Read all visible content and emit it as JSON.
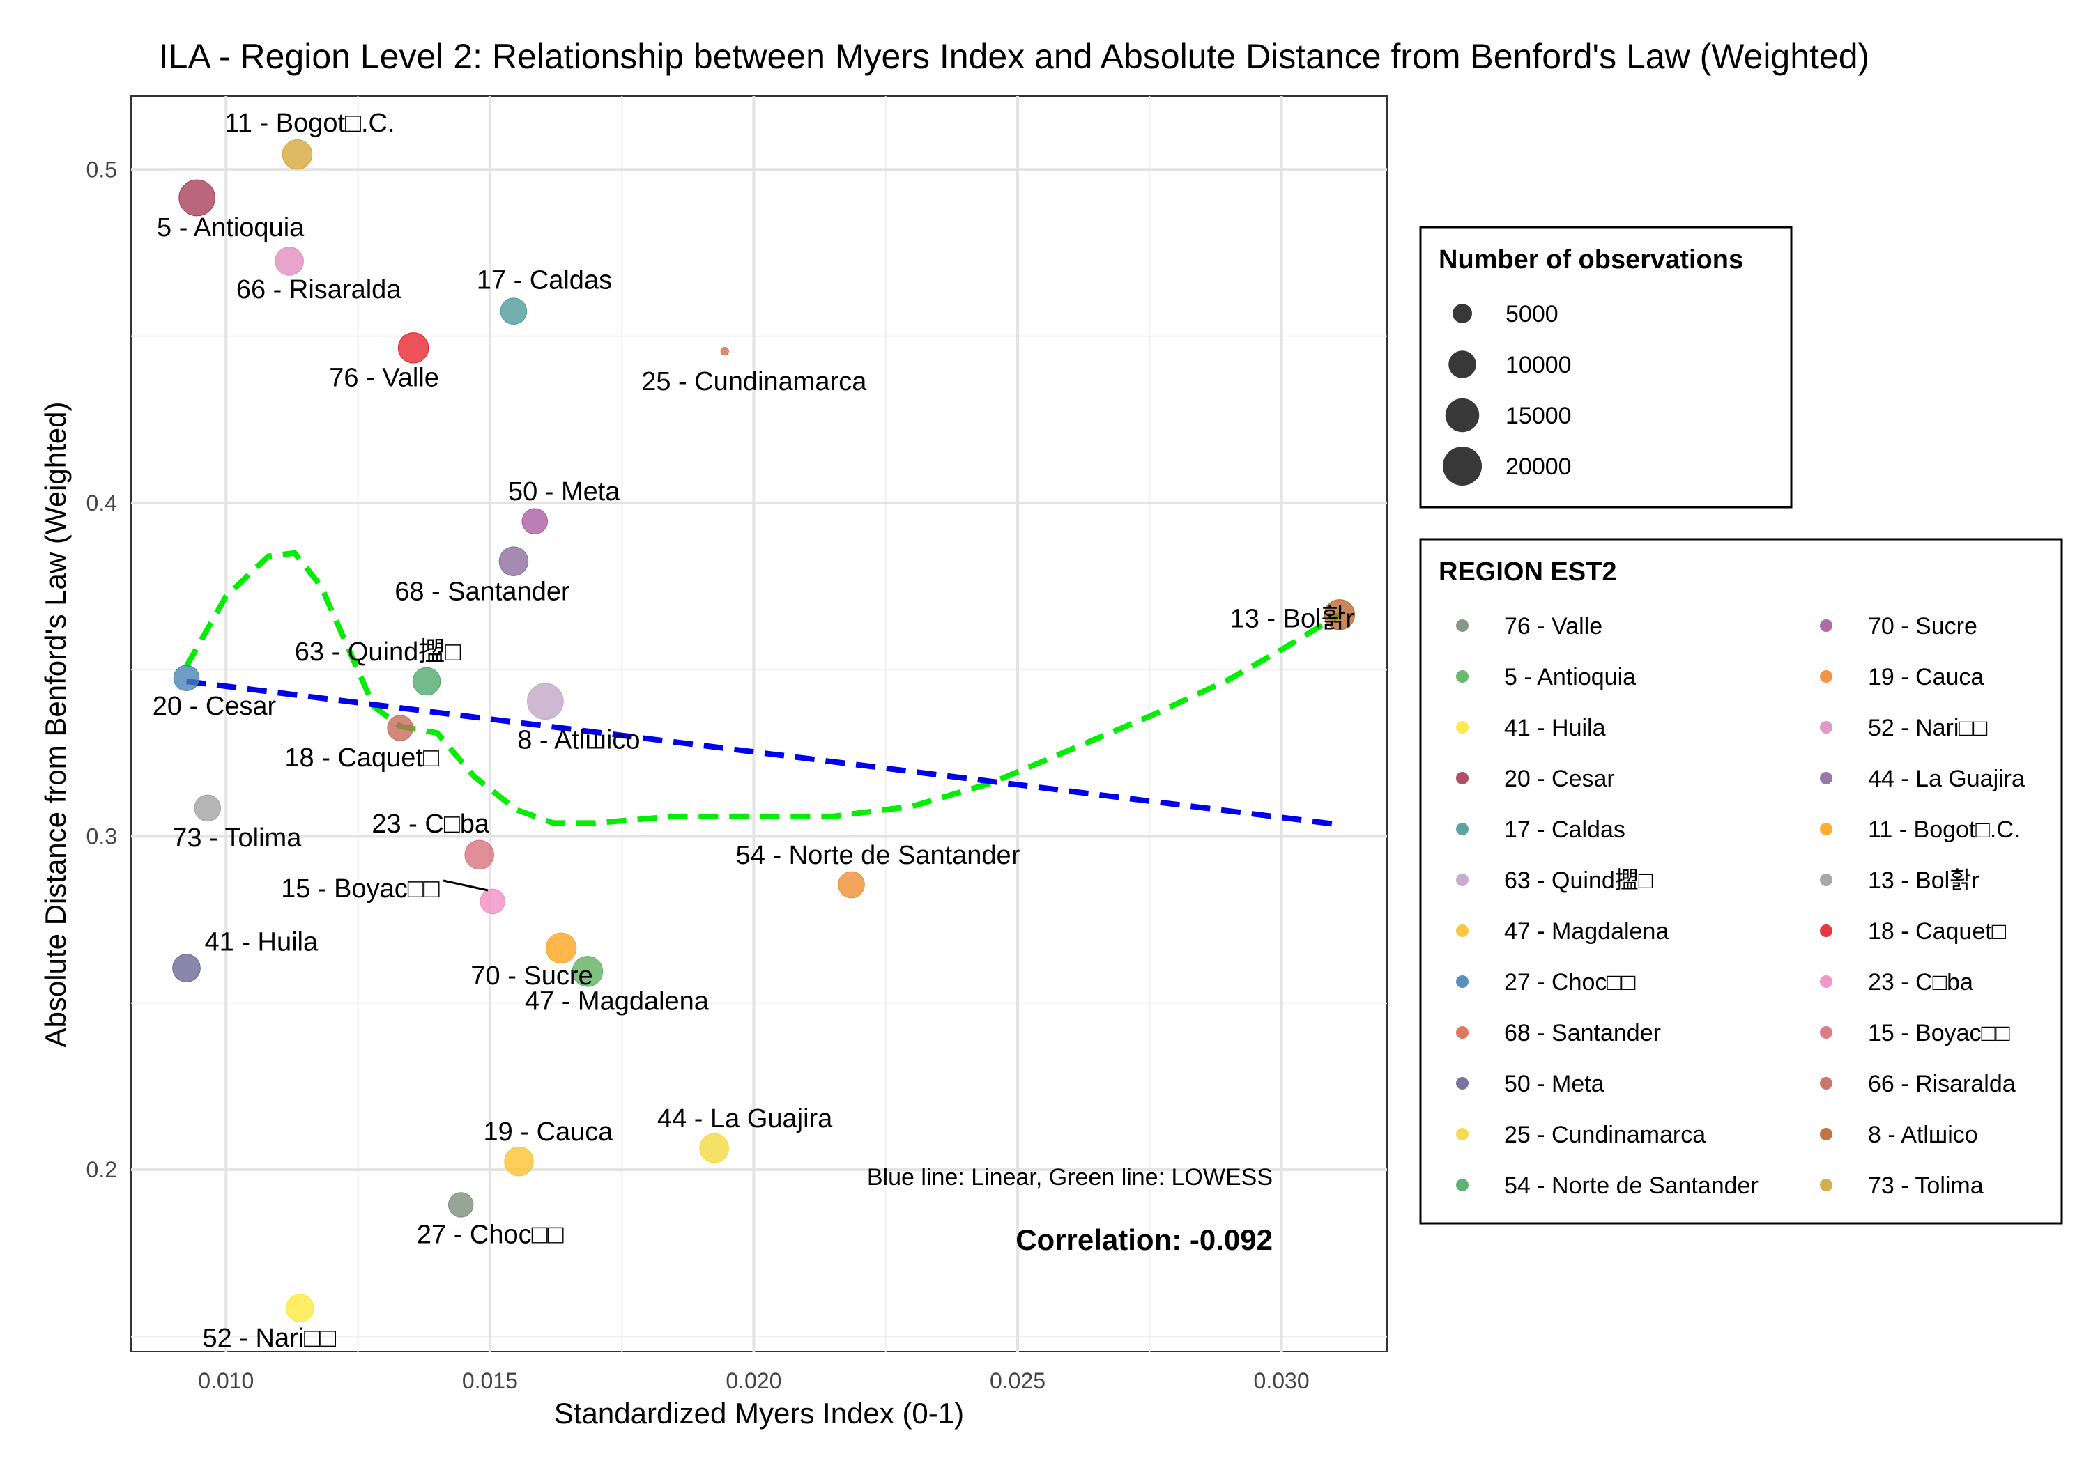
{
  "chart_data": {
    "type": "scatter",
    "title": "ILA - Region Level 2: Relationship between Myers Index and Absolute Distance from Benford's Law (Weighted)",
    "xlabel": "Standardized Myers Index (0-1)",
    "ylabel": "Absolute Distance from Benford's Law (Weighted)",
    "xlim": [
      0.0082,
      0.032
    ],
    "ylim": [
      0.1455,
      0.522
    ],
    "x_ticks": [
      0.01,
      0.015,
      0.02,
      0.025,
      0.03
    ],
    "x_tick_labels": [
      "0.010",
      "0.015",
      "0.020",
      "0.025",
      "0.030"
    ],
    "y_ticks": [
      0.2,
      0.3,
      0.4,
      0.5
    ],
    "y_tick_labels": [
      "0.2",
      "0.3",
      "0.4",
      "0.5"
    ],
    "grid": true,
    "points": [
      {
        "label": "11 - Bogot□.C.",
        "x": 0.01135,
        "y": 0.5045,
        "n": 11500,
        "color": "#d4a537"
      },
      {
        "label": "5 - Antioquia",
        "x": 0.00945,
        "y": 0.4915,
        "n": 17000,
        "color": "#a83c56"
      },
      {
        "label": "66 - Risaralda",
        "x": 0.0112,
        "y": 0.4725,
        "n": 10500,
        "color": "#e08cc0"
      },
      {
        "label": "17 - Caldas",
        "x": 0.01545,
        "y": 0.4575,
        "n": 9000,
        "color": "#4a9a9a"
      },
      {
        "label": "76 - Valle",
        "x": 0.01355,
        "y": 0.4465,
        "n": 12000,
        "color": "#e8202a"
      },
      {
        "label": "25 - Cundinamarca",
        "x": 0.01945,
        "y": 0.4455,
        "n": 800,
        "color": "#d96a4c"
      },
      {
        "label": "50 - Meta",
        "x": 0.01585,
        "y": 0.3945,
        "n": 8500,
        "color": "#ab5aa0"
      },
      {
        "label": "68 - Santander",
        "x": 0.01545,
        "y": 0.3825,
        "n": 11000,
        "color": "#8a6a9c"
      },
      {
        "label": "13 - Bol홝r",
        "x": 0.0311,
        "y": 0.3665,
        "n": 12000,
        "color": "#b8662e"
      },
      {
        "label": "20 - Cesar",
        "x": 0.00925,
        "y": 0.3475,
        "n": 8500,
        "color": "#4682b4"
      },
      {
        "label": "63 - Quind擝□",
        "x": 0.0138,
        "y": 0.3465,
        "n": 10000,
        "color": "#4ca86a"
      },
      {
        "label": "8 - Atlшico",
        "x": 0.01605,
        "y": 0.3405,
        "n": 17000,
        "color": "#c2a4c4"
      },
      {
        "label": "18 - Caquet□",
        "x": 0.0133,
        "y": 0.3325,
        "n": 8500,
        "color": "#c7665a"
      },
      {
        "label": "73 - Tolima",
        "x": 0.00965,
        "y": 0.3085,
        "n": 9000,
        "color": "#a0a0a0"
      },
      {
        "label": "23 - C□ba",
        "x": 0.0148,
        "y": 0.2945,
        "n": 11000,
        "color": "#d9707a"
      },
      {
        "label": "15 - Boyac□□",
        "x": 0.01505,
        "y": 0.2805,
        "n": 8000,
        "color": "#f28dc0"
      },
      {
        "label": "54 - Norte de Santander",
        "x": 0.02185,
        "y": 0.2855,
        "n": 9000,
        "color": "#f08a30"
      },
      {
        "label": "70 - Sucre",
        "x": 0.01635,
        "y": 0.2665,
        "n": 12000,
        "color": "#ffa31a"
      },
      {
        "label": "47 - Magdalena",
        "x": 0.01685,
        "y": 0.2595,
        "n": 12000,
        "color": "#5cb05c"
      },
      {
        "label": "41 - Huila",
        "x": 0.00925,
        "y": 0.2605,
        "n": 10000,
        "color": "#6a6494"
      },
      {
        "label": "44 - La Guajira",
        "x": 0.01925,
        "y": 0.2065,
        "n": 11000,
        "color": "#f2d83a"
      },
      {
        "label": "19 - Cauca",
        "x": 0.01555,
        "y": 0.2025,
        "n": 11000,
        "color": "#fcc02c"
      },
      {
        "label": "27 - Choc□□",
        "x": 0.01445,
        "y": 0.1895,
        "n": 8000,
        "color": "#7a8c7a"
      },
      {
        "label": "52 - Nari□□",
        "x": 0.0114,
        "y": 0.1585,
        "n": 10000,
        "color": "#ffe83a"
      }
    ],
    "size_legend": {
      "title": "Number of observations",
      "entries": [
        {
          "label": "5000",
          "n": 5000
        },
        {
          "label": "10000",
          "n": 10000
        },
        {
          "label": "15000",
          "n": 15000
        },
        {
          "label": "20000",
          "n": 20000
        }
      ]
    },
    "color_legend": {
      "title": "REGION EST2",
      "entries": [
        {
          "label": "76 - Valle",
          "color": "#7a8c7a"
        },
        {
          "label": " 5 - Antioquia",
          "color": "#5cb05c"
        },
        {
          "label": "41 - Huila",
          "color": "#ffe83a"
        },
        {
          "label": "20 - Cesar",
          "color": "#a83c56"
        },
        {
          "label": "17 - Caldas",
          "color": "#4a9a9a"
        },
        {
          "label": "63 - Quind擝□",
          "color": "#c2a4c4"
        },
        {
          "label": "47 - Magdalena",
          "color": "#fcc02c"
        },
        {
          "label": "27 - Choc□□",
          "color": "#4682b4"
        },
        {
          "label": "68 - Santander",
          "color": "#d96a4c"
        },
        {
          "label": "50 - Meta",
          "color": "#6a6494"
        },
        {
          "label": "25 - Cundinamarca",
          "color": "#f2d83a"
        },
        {
          "label": "54 - Norte de Santander",
          "color": "#4ca86a"
        },
        {
          "label": "70 - Sucre",
          "color": "#ab5aa0"
        },
        {
          "label": "19 - Cauca",
          "color": "#f08a30"
        },
        {
          "label": "52 - Nari□□",
          "color": "#e08cc0"
        },
        {
          "label": "44 - La Guajira",
          "color": "#8a6a9c"
        },
        {
          "label": "11 - Bogot□.C.",
          "color": "#ffa31a"
        },
        {
          "label": "13 - Bol홝r",
          "color": "#a0a0a0"
        },
        {
          "label": "18 - Caquet□",
          "color": "#e8202a"
        },
        {
          "label": "23 - C□ba",
          "color": "#f28dc0"
        },
        {
          "label": "15 - Boyac□□",
          "color": "#d9707a"
        },
        {
          "label": "66 - Risaralda",
          "color": "#c7665a"
        },
        {
          "label": " 8 - Atlшico",
          "color": "#b8662e"
        },
        {
          "label": "73 - Tolima",
          "color": "#d4a537"
        }
      ]
    },
    "linear_fit": {
      "color": "#0000ee",
      "x": [
        0.00925,
        0.0311
      ],
      "y": [
        0.3465,
        0.3035
      ]
    },
    "lowess_fit": {
      "color": "#00ee00",
      "x": [
        0.00925,
        0.01,
        0.0108,
        0.0113,
        0.0118,
        0.0123,
        0.0128,
        0.0133,
        0.014,
        0.0147,
        0.0155,
        0.0162,
        0.017,
        0.0185,
        0.02,
        0.0215,
        0.023,
        0.0245,
        0.026,
        0.0275,
        0.029,
        0.03,
        0.0311
      ],
      "y": [
        0.351,
        0.372,
        0.384,
        0.385,
        0.375,
        0.357,
        0.339,
        0.333,
        0.331,
        0.318,
        0.308,
        0.304,
        0.304,
        0.306,
        0.306,
        0.306,
        0.309,
        0.316,
        0.326,
        0.336,
        0.347,
        0.356,
        0.3665
      ]
    },
    "annotations": {
      "lines_note": "Blue line: Linear, Green line: LOWESS",
      "correlation": "Correlation: -0.092"
    }
  }
}
